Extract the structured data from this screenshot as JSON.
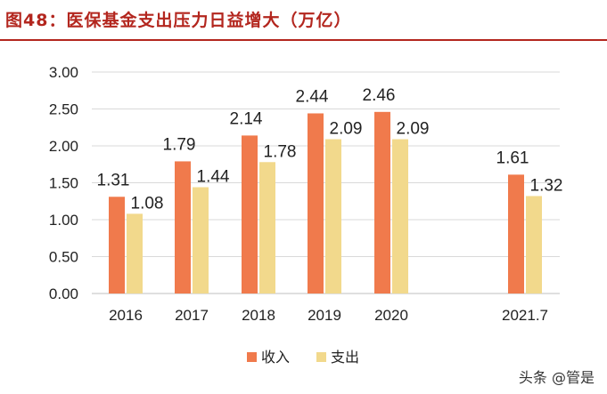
{
  "title": "图48：医保基金支出压力日益增大（万亿）",
  "watermark": "头条 @管是",
  "colors": {
    "accent": "#b3261e",
    "income": "#f07a4c",
    "expense": "#f2d98c",
    "grid": "#d9d9d9"
  },
  "chart_data": {
    "type": "bar",
    "title": "图48：医保基金支出压力日益增大（万亿）",
    "categories": [
      "2016",
      "2017",
      "2018",
      "2019",
      "2020",
      "2021.7"
    ],
    "series": [
      {
        "name": "收入",
        "values": [
          1.31,
          1.79,
          2.14,
          2.44,
          2.46,
          1.61
        ]
      },
      {
        "name": "支出",
        "values": [
          1.08,
          1.44,
          1.78,
          2.09,
          2.09,
          1.32
        ]
      }
    ],
    "y_ticks": [
      "0.00",
      "0.50",
      "1.00",
      "1.50",
      "2.00",
      "2.50",
      "3.00"
    ],
    "ylim": [
      0,
      3.0
    ],
    "grid": true,
    "legend_position": "bottom-center"
  }
}
